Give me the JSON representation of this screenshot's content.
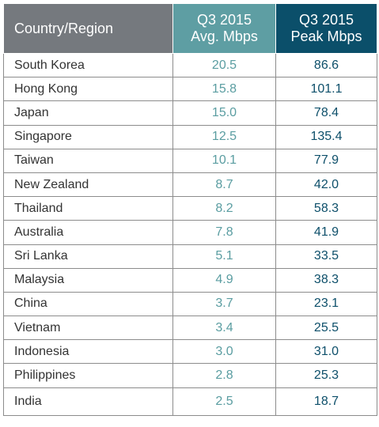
{
  "header": {
    "country": "Country/Region",
    "avg_line1": "Q3 2015",
    "avg_line2": "Avg. Mbps",
    "peak_line1": "Q3 2015",
    "peak_line2": "Peak Mbps"
  },
  "colors": {
    "country_header_bg": "#75797e",
    "avg_header_bg": "#5e9ea3",
    "peak_header_bg": "#0b4f6a",
    "avg_text": "#5a9da1",
    "peak_text": "#0d4f6a"
  },
  "rows": [
    {
      "country": "South Korea",
      "avg": "20.5",
      "peak": "86.6"
    },
    {
      "country": "Hong Kong",
      "avg": "15.8",
      "peak": "101.1"
    },
    {
      "country": "Japan",
      "avg": "15.0",
      "peak": "78.4"
    },
    {
      "country": "Singapore",
      "avg": "12.5",
      "peak": "135.4"
    },
    {
      "country": "Taiwan",
      "avg": "10.1",
      "peak": "77.9"
    },
    {
      "country": "New Zealand",
      "avg": "8.7",
      "peak": "42.0"
    },
    {
      "country": "Thailand",
      "avg": "8.2",
      "peak": "58.3"
    },
    {
      "country": "Australia",
      "avg": "7.8",
      "peak": "41.9"
    },
    {
      "country": "Sri Lanka",
      "avg": "5.1",
      "peak": "33.5"
    },
    {
      "country": "Malaysia",
      "avg": "4.9",
      "peak": "38.3"
    },
    {
      "country": "China",
      "avg": "3.7",
      "peak": "23.1"
    },
    {
      "country": "Vietnam",
      "avg": "3.4",
      "peak": "25.5"
    },
    {
      "country": "Indonesia",
      "avg": "3.0",
      "peak": "31.0"
    },
    {
      "country": "Philippines",
      "avg": "2.8",
      "peak": "25.3"
    },
    {
      "country": "India",
      "avg": "2.5",
      "peak": "18.7"
    }
  ]
}
